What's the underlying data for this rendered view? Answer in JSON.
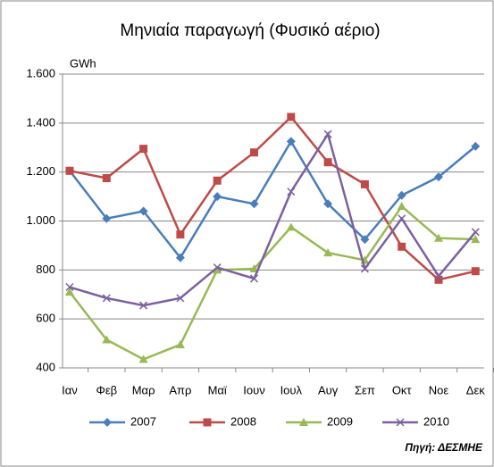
{
  "chart_data": {
    "type": "line",
    "title": "Μηνιαία παραγωγή (Φυσικό αέριο)",
    "y_label": "GWh",
    "source": "Πηγή: ΔΕΣΜΗΕ",
    "categories": [
      "Ιαν",
      "Φεβ",
      "Μαρ",
      "Απρ",
      "Μαϊ",
      "Ιουν",
      "Ιουλ",
      "Αυγ",
      "Σεπ",
      "Οκτ",
      "Νοε",
      "Δεκ"
    ],
    "series": [
      {
        "name": "2007",
        "color": "#4a7ebb",
        "marker": "diamond",
        "values": [
          1205,
          1010,
          1040,
          850,
          1100,
          1070,
          1325,
          1070,
          925,
          1105,
          1180,
          1305
        ]
      },
      {
        "name": "2008",
        "color": "#be4b48",
        "marker": "square",
        "values": [
          1205,
          1175,
          1295,
          945,
          1165,
          1280,
          1425,
          1240,
          1150,
          895,
          760,
          795
        ]
      },
      {
        "name": "2009",
        "color": "#98b954",
        "marker": "triangle",
        "values": [
          710,
          515,
          435,
          495,
          800,
          805,
          975,
          870,
          840,
          1060,
          930,
          925
        ]
      },
      {
        "name": "2010",
        "color": "#7d60a0",
        "marker": "cross",
        "values": [
          730,
          685,
          655,
          685,
          810,
          765,
          1120,
          1355,
          805,
          1010,
          775,
          955
        ]
      }
    ],
    "ylim": [
      400,
      1600
    ],
    "yticks": [
      400,
      600,
      800,
      {
        "value": 1000,
        "label": "1.000"
      },
      {
        "value": 1200,
        "label": "1.200"
      },
      {
        "value": 1400,
        "label": "1.400"
      },
      {
        "value": 1600,
        "label": "1.600"
      }
    ],
    "grid": true,
    "legend": "bottom"
  }
}
